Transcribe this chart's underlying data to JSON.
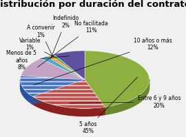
{
  "title": "Distribución por duración del contrato",
  "labels": [
    "5 años",
    "Entre 6 y 9 años",
    "10 años o más",
    "No facilitada",
    "Indefinido",
    "A convenir",
    "Variable",
    "Menos de 5\naños"
  ],
  "values": [
    45,
    20,
    12,
    11,
    2,
    1,
    1,
    8
  ],
  "colors": [
    "#8DB040",
    "#C0504D",
    "#4472C4",
    "#C4A3C4",
    "#4BACC6",
    "#F79646",
    "#70AD47",
    "#6050A0"
  ],
  "dark_colors": [
    "#6A8830",
    "#8B2020",
    "#2A52A0",
    "#A080A0",
    "#2A8090",
    "#C06010",
    "#507830",
    "#403080"
  ],
  "startangle": 90,
  "title_fontsize": 9.5,
  "yscale": 0.45,
  "depth": 0.12,
  "label_fontsize": 5.5
}
